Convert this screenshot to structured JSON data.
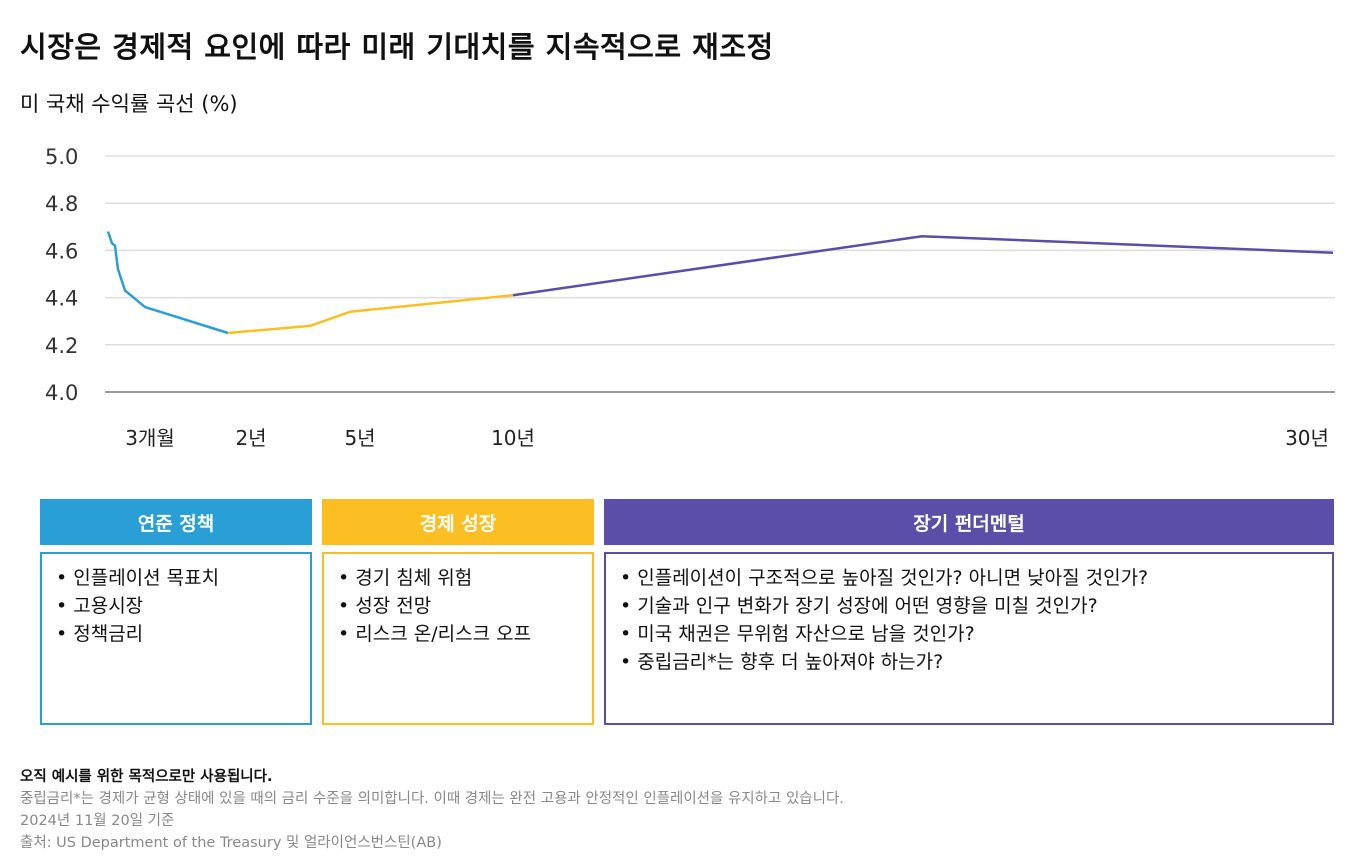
{
  "title": "시장은 경제적 요인에 따라 미래 기대치를 지속적으로 재조정",
  "chart_data": {
    "type": "line",
    "title": "미 국채 수익률 곡선 (%)",
    "ylim": [
      4.0,
      5.0
    ],
    "yticks": [
      "5.0",
      "4.8",
      "4.6",
      "4.4",
      "4.2",
      "4.0"
    ],
    "xticks": [
      {
        "label": "3개월",
        "x": 0.25
      },
      {
        "label": "2년",
        "x": 2
      },
      {
        "label": "5년",
        "x": 5
      },
      {
        "label": "10년",
        "x": 10
      },
      {
        "label": "30년",
        "x": 30
      }
    ],
    "grid": true,
    "series": [
      {
        "color": "#2a9fd6",
        "points": [
          [
            0.083,
            4.68
          ],
          [
            0.167,
            4.63
          ],
          [
            0.25,
            4.62
          ],
          [
            0.333,
            4.52
          ],
          [
            0.5,
            4.43
          ],
          [
            1,
            4.36
          ],
          [
            2,
            4.25
          ]
        ]
      },
      {
        "color": "#fbbf24",
        "points": [
          [
            2,
            4.25
          ],
          [
            3,
            4.28
          ],
          [
            5,
            4.34
          ],
          [
            10,
            4.41
          ]
        ]
      },
      {
        "color": "#5b4ea8",
        "points": [
          [
            10,
            4.41
          ],
          [
            20,
            4.66
          ],
          [
            30,
            4.59
          ]
        ]
      }
    ]
  },
  "panels": [
    {
      "title": "연준 정책",
      "color": "#2a9fd6",
      "items": [
        "• 인플레이션 목표치",
        "• 고용시장",
        "• 정책금리"
      ]
    },
    {
      "title": "경제 성장",
      "color": "#fbbf24",
      "items": [
        "• 경기 침체 위험",
        "• 성장 전망",
        "• 리스크 온/리스크 오프"
      ]
    },
    {
      "title": "장기 펀더멘털",
      "color": "#5b4ea8",
      "items": [
        "• 인플레이션이 구조적으로 높아질 것인가? 아니면 낮아질 것인가?",
        "• 기술과 인구 변화가 장기 성장에 어떤 영향을 미칠 것인가?",
        "• 미국 채권은 무위험 자산으로 남을 것인가?",
        "• 중립금리*는 향후 더 높아져야 하는가?"
      ]
    }
  ],
  "footer": {
    "disclaimer": "오직 예시를 위한 목적으로만 사용됩니다.",
    "note": "중립금리*는 경제가 균형 상태에 있을 때의 금리 수준을 의미합니다. 이때 경제는 완전 고용과 안정적인 인플레이션을 유지하고 있습니다.",
    "date": "2024년 11월 20일 기준",
    "source": "출처: US Department of the Treasury 및 얼라이언스번스틴(AB)"
  }
}
